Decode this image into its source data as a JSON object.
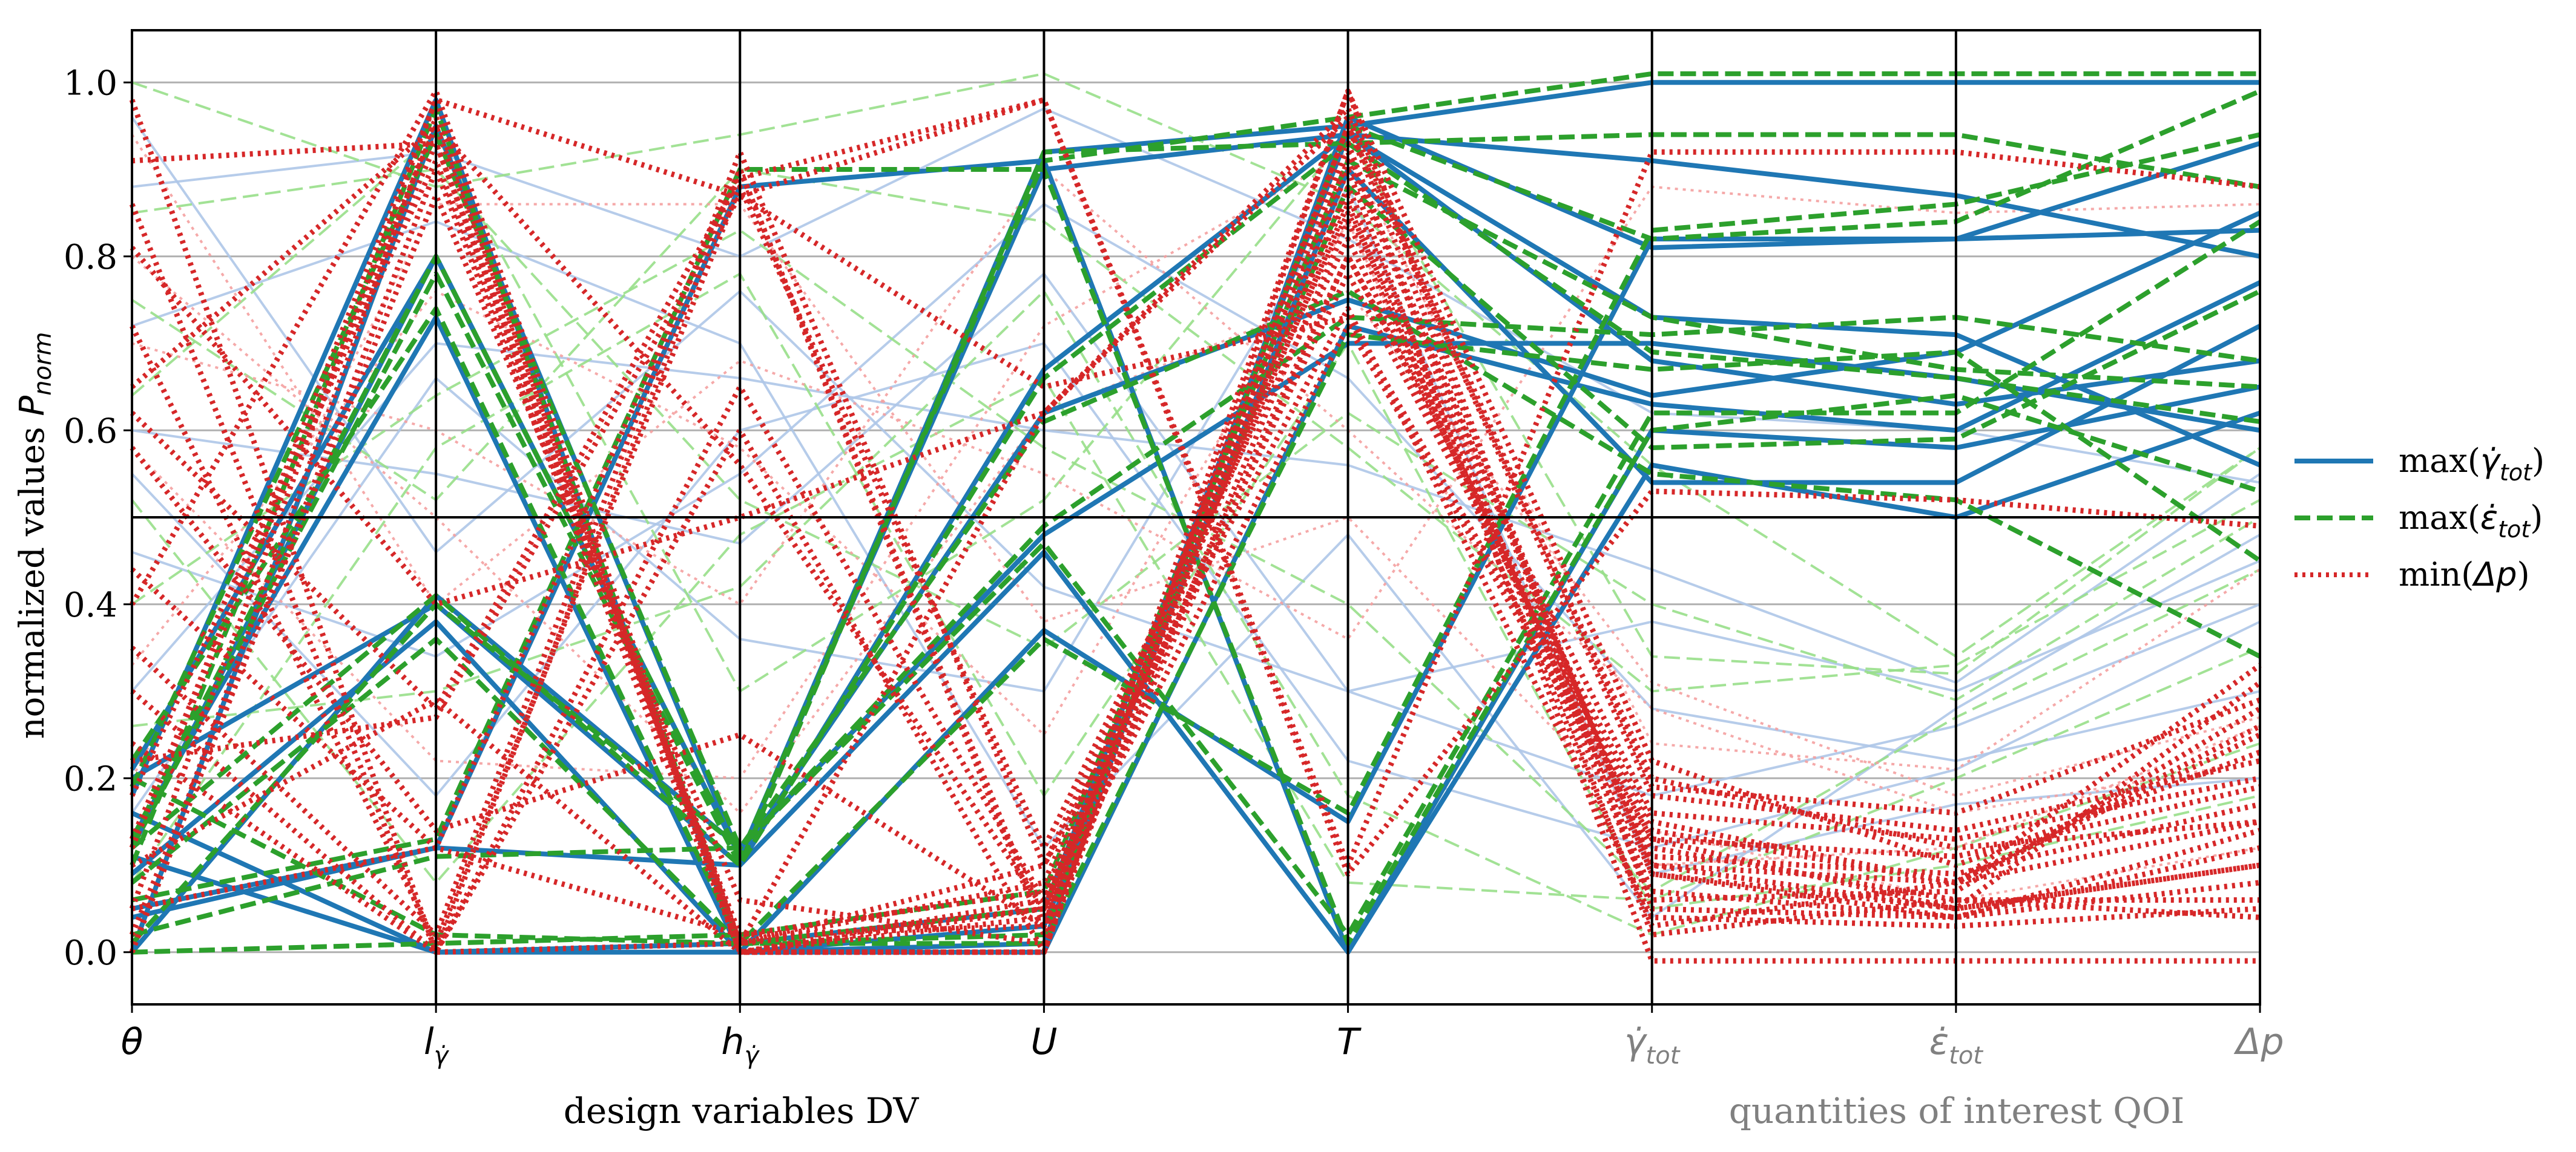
{
  "chart_data": {
    "type": "parallel-coordinates",
    "ylabel": "normalized values P_norm",
    "ylabel_parts": {
      "main": "normalized values ",
      "symbol": "P",
      "subscript": "norm"
    },
    "ylim": [
      -0.06,
      1.06
    ],
    "yticks": [
      0.0,
      0.2,
      0.4,
      0.6,
      0.8,
      1.0
    ],
    "ytick_labels": [
      "0.0",
      "0.2",
      "0.4",
      "0.6",
      "0.8",
      "1.0"
    ],
    "reference_line": 0.5,
    "axes": [
      {
        "id": "theta",
        "label": "θ",
        "group": "dv"
      },
      {
        "id": "l_gdot",
        "label": "l_γ̇",
        "base": "l",
        "sub": "γ̇",
        "group": "dv"
      },
      {
        "id": "h_gdot",
        "label": "h_γ̇",
        "base": "h",
        "sub": "γ̇",
        "group": "dv"
      },
      {
        "id": "U",
        "label": "U",
        "group": "dv"
      },
      {
        "id": "T",
        "label": "T",
        "group": "dv"
      },
      {
        "id": "gdot_tot",
        "label": "γ̇_tot",
        "base": "γ̇",
        "sub": "tot",
        "group": "qoi"
      },
      {
        "id": "edot_tot",
        "label": "ε̇_tot",
        "base": "ε̇",
        "sub": "tot",
        "group": "qoi"
      },
      {
        "id": "dp",
        "label": "Δp",
        "group": "qoi"
      }
    ],
    "group_labels": {
      "dv": "design variables DV",
      "qoi": "quantities of interest QOI"
    },
    "colors": {
      "dv_label": "#000000",
      "qoi_label": "#808080",
      "grid": "#b0b0b0",
      "frame": "#000000"
    },
    "legend": {
      "placement": "right",
      "entries": [
        {
          "label": "max(γ̇_tot)",
          "pre": "max(",
          "base": "γ̇",
          "sub": "tot",
          "post": ")",
          "color": "#1f77b4",
          "style": "solid"
        },
        {
          "label": "max(ε̇_tot)",
          "pre": "max(",
          "base": "ε̇",
          "sub": "tot",
          "post": ")",
          "color": "#2ca02c",
          "style": "dashed"
        },
        {
          "label": "min(Δp)",
          "pre": "min(",
          "base": "Δp",
          "sub": "",
          "post": ")",
          "color": "#d62728",
          "style": "dotted"
        }
      ]
    },
    "series": [
      {
        "name": "max(γ̇_tot)",
        "color": "#1f77b4",
        "style": "solid",
        "lines": [
          [
            0.12,
            0.8,
            0.11,
            0.92,
            0.95,
            1.0,
            1.0,
            1.0
          ],
          [
            0.2,
            0.4,
            0.1,
            0.67,
            0.94,
            0.91,
            0.87,
            0.8
          ],
          [
            0.13,
            0.73,
            0.0,
            0.37,
            0.15,
            0.82,
            0.82,
            0.93
          ],
          [
            0.0,
            0.41,
            0.12,
            0.48,
            0.7,
            0.7,
            0.66,
            0.6
          ],
          [
            0.18,
            0.98,
            0.0,
            0.0,
            0.72,
            0.63,
            0.6,
            0.77
          ],
          [
            0.05,
            0.12,
            0.88,
            0.91,
            0.0,
            0.56,
            0.5,
            0.62
          ],
          [
            0.11,
            0.0,
            0.01,
            0.05,
            0.94,
            0.68,
            0.63,
            0.68
          ],
          [
            0.0,
            0.95,
            0.11,
            0.62,
            0.75,
            0.64,
            0.69,
            0.85
          ],
          [
            0.09,
            0.38,
            0.0,
            0.03,
            0.9,
            0.54,
            0.54,
            0.72
          ],
          [
            0.04,
            0.12,
            0.1,
            0.46,
            0.0,
            0.6,
            0.58,
            0.65
          ],
          [
            0.21,
            0.8,
            0.11,
            0.9,
            0.94,
            0.73,
            0.71,
            0.56
          ],
          [
            0.16,
            0.0,
            0.0,
            0.01,
            0.96,
            0.81,
            0.82,
            0.83
          ]
        ]
      },
      {
        "name": "max(ε̇_tot)",
        "color": "#2ca02c",
        "style": "dashed",
        "lines": [
          [
            0.13,
            0.8,
            0.11,
            0.91,
            0.96,
            1.01,
            1.01,
            1.01
          ],
          [
            0.12,
            0.41,
            0.1,
            0.66,
            0.93,
            0.94,
            0.94,
            0.88
          ],
          [
            0.22,
            0.74,
            0.01,
            0.36,
            0.16,
            0.83,
            0.86,
            0.94
          ],
          [
            0.01,
            0.4,
            0.12,
            0.49,
            0.73,
            0.71,
            0.73,
            0.68
          ],
          [
            0.1,
            0.97,
            0.01,
            0.01,
            0.71,
            0.67,
            0.69,
            0.45
          ],
          [
            0.06,
            0.13,
            0.9,
            0.9,
            0.01,
            0.6,
            0.64,
            0.53
          ],
          [
            0.0,
            0.01,
            0.02,
            0.07,
            0.91,
            0.73,
            0.67,
            0.65
          ],
          [
            0.19,
            0.94,
            0.12,
            0.61,
            0.76,
            0.55,
            0.52,
            0.34
          ],
          [
            0.08,
            0.36,
            0.01,
            0.05,
            0.88,
            0.58,
            0.59,
            0.76
          ],
          [
            0.02,
            0.11,
            0.12,
            0.47,
            0.02,
            0.62,
            0.62,
            0.84
          ],
          [
            0.12,
            0.78,
            0.1,
            0.92,
            0.93,
            0.69,
            0.66,
            0.61
          ],
          [
            0.2,
            0.02,
            0.01,
            0.02,
            0.95,
            0.82,
            0.84,
            0.99
          ]
        ]
      },
      {
        "name": "min(Δp)",
        "color": "#d62728",
        "style": "dotted",
        "lines": [
          [
            0.12,
            0.95,
            0.01,
            0.05,
            0.72,
            0.12,
            0.06,
            0.04
          ],
          [
            0.0,
            0.9,
            0.0,
            0.0,
            0.95,
            0.2,
            0.12,
            0.15
          ],
          [
            0.98,
            0.0,
            0.9,
            0.02,
            0.84,
            0.09,
            0.05,
            0.1
          ],
          [
            0.62,
            0.28,
            0.89,
            0.98,
            0.1,
            0.92,
            0.92,
            0.88
          ],
          [
            0.05,
            0.98,
            0.0,
            0.06,
            0.8,
            0.15,
            0.08,
            0.25
          ],
          [
            0.3,
            0.0,
            0.65,
            0.06,
            0.92,
            0.1,
            0.05,
            0.31
          ],
          [
            0.44,
            0.12,
            0.02,
            0.03,
            0.99,
            0.05,
            0.04,
            0.08
          ],
          [
            0.22,
            0.27,
            0.87,
            0.65,
            0.73,
            0.13,
            0.11,
            0.19
          ],
          [
            0.13,
            0.93,
            0.01,
            0.08,
            0.87,
            0.06,
            0.07,
            0.28
          ],
          [
            0.81,
            0.4,
            0.5,
            0.62,
            0.96,
            0.18,
            0.14,
            0.22
          ],
          [
            0.0,
            0.96,
            0.0,
            0.04,
            0.88,
            0.07,
            0.04,
            0.12
          ],
          [
            0.72,
            0.01,
            0.88,
            0.12,
            0.82,
            0.11,
            0.09,
            0.17
          ],
          [
            0.1,
            0.29,
            0.0,
            0.0,
            0.99,
            0.22,
            0.1,
            0.23
          ],
          [
            0.18,
            0.91,
            0.02,
            0.07,
            0.78,
            0.14,
            0.08,
            0.33
          ],
          [
            0.86,
            0.0,
            0.6,
            0.0,
            0.93,
            0.02,
            0.06,
            0.06
          ],
          [
            0.4,
            0.99,
            0.01,
            0.1,
            0.85,
            0.16,
            0.13,
            0.2
          ],
          [
            0.05,
            0.12,
            0.9,
            0.03,
            0.95,
            0.09,
            0.04,
            0.14
          ],
          [
            0.65,
            0.95,
            0.56,
            0.05,
            0.86,
            0.03,
            0.08,
            0.26
          ],
          [
            0.24,
            0.0,
            0.01,
            0.62,
            0.97,
            0.19,
            0.16,
            0.29
          ],
          [
            0.12,
            0.98,
            0.87,
            0.98,
            0.09,
            0.53,
            0.52,
            0.49
          ],
          [
            0.02,
            0.87,
            0.06,
            0.01,
            0.9,
            -0.01,
            -0.01,
            -0.01
          ],
          [
            0.58,
            0.14,
            0.25,
            0.03,
            0.8,
            0.13,
            0.05,
            0.1
          ],
          [
            0.91,
            0.93,
            0.0,
            0.05,
            0.91,
            0.1,
            0.08,
            0.15
          ],
          [
            0.35,
            0.02,
            0.92,
            0.1,
            0.74,
            0.04,
            0.03,
            0.05
          ]
        ]
      }
    ],
    "background_series": [
      {
        "name": "light-blue",
        "color": "#aec7e8",
        "style": "solid",
        "lines": [
          [
            0.88,
            0.92,
            0.8,
            0.97,
            0.82,
            0.62,
            0.6,
            0.54
          ],
          [
            0.6,
            0.55,
            0.47,
            0.78,
            0.3,
            0.18,
            0.26,
            0.4
          ],
          [
            0.3,
            0.7,
            0.66,
            0.6,
            0.56,
            0.44,
            0.31,
            0.55
          ],
          [
            0.72,
            0.84,
            0.7,
            0.12,
            0.48,
            0.04,
            0.28,
            0.48
          ],
          [
            0.46,
            0.34,
            0.55,
            0.86,
            0.66,
            0.28,
            0.22,
            0.3
          ],
          [
            0.16,
            0.66,
            0.36,
            0.3,
            0.88,
            0.09,
            0.17,
            0.2
          ],
          [
            0.96,
            0.46,
            0.76,
            0.42,
            0.3,
            0.38,
            0.3,
            0.45
          ],
          [
            0.55,
            0.18,
            0.6,
            0.7,
            0.22,
            0.12,
            0.21,
            0.38
          ]
        ]
      },
      {
        "name": "light-green",
        "color": "#98df8a",
        "style": "dashed",
        "lines": [
          [
            1.0,
            0.88,
            0.94,
            1.01,
            0.86,
            0.56,
            0.34,
            0.58
          ],
          [
            0.75,
            0.52,
            0.9,
            0.84,
            0.58,
            0.3,
            0.33,
            0.52
          ],
          [
            0.4,
            0.64,
            0.83,
            0.58,
            0.4,
            0.07,
            0.27,
            0.44
          ],
          [
            0.85,
            0.9,
            0.52,
            0.35,
            0.62,
            0.4,
            0.29,
            0.5
          ],
          [
            0.26,
            0.3,
            0.42,
            0.76,
            0.18,
            0.02,
            0.12,
            0.24
          ],
          [
            0.64,
            0.94,
            0.3,
            0.52,
            0.94,
            0.34,
            0.32,
            0.58
          ],
          [
            0.08,
            0.58,
            0.78,
            0.18,
            0.7,
            0.05,
            0.1,
            0.18
          ],
          [
            0.52,
            0.08,
            0.48,
            0.66,
            0.08,
            0.06,
            0.2,
            0.35
          ]
        ]
      },
      {
        "name": "light-red",
        "color": "#f4a0a0",
        "style": "dotted",
        "lines": [
          [
            0.7,
            0.6,
            0.4,
            0.9,
            0.6,
            0.28,
            0.16,
            0.22
          ],
          [
            0.33,
            0.76,
            0.58,
            0.25,
            0.84,
            0.1,
            0.12,
            0.26
          ],
          [
            0.94,
            0.4,
            0.68,
            0.55,
            0.36,
            0.88,
            0.85,
            0.86
          ],
          [
            0.58,
            0.22,
            0.2,
            0.72,
            0.92,
            0.24,
            0.21,
            0.44
          ],
          [
            0.2,
            0.86,
            0.86,
            0.38,
            0.5,
            0.14,
            0.06,
            0.12
          ],
          [
            0.8,
            0.5,
            0.16,
            0.62,
            0.76,
            0.31,
            0.18,
            0.27
          ]
        ]
      }
    ]
  }
}
